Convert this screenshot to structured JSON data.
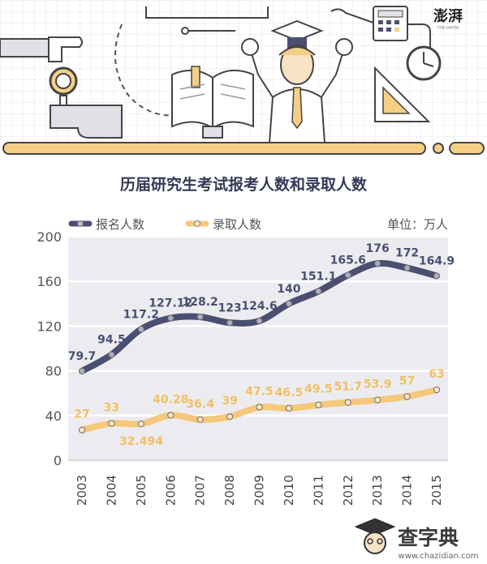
{
  "chart_data": {
    "type": "line",
    "title": "历届研究生考试报考人数和录取人数",
    "unit_label": "单位：万人",
    "x": [
      "2003",
      "2004",
      "2005",
      "2006",
      "2007",
      "2008",
      "2009",
      "2010",
      "2011",
      "2012",
      "2013",
      "2014",
      "2015"
    ],
    "ylim": [
      0,
      200
    ],
    "yticks": [
      "0",
      "40",
      "80",
      "120",
      "160",
      "200"
    ],
    "grid": true,
    "legend_position": "top-left",
    "series": [
      {
        "name": "报名人数",
        "color": "#4a4f72",
        "values": [
          79.7,
          94.5,
          117.2,
          127.12,
          128.2,
          123,
          124.6,
          140,
          151.1,
          165.6,
          176,
          172,
          164.9
        ],
        "labels": [
          "79.7",
          "94.5",
          "117.2",
          "127.12",
          "128.2",
          "123",
          "124.6",
          "140",
          "151.1",
          "165.6",
          "176",
          "172",
          "164.9"
        ]
      },
      {
        "name": "录取人数",
        "color": "#f5c87c",
        "values": [
          27,
          33,
          32.494,
          40.28,
          36.4,
          39,
          47.5,
          46.5,
          49.5,
          51.7,
          53.9,
          57,
          63
        ],
        "labels": [
          "27",
          "33",
          "32.494",
          "40.28",
          "36.4",
          "39",
          "47.5",
          "46.5",
          "49.5",
          "51.7",
          "53.9",
          "57",
          "63"
        ]
      }
    ]
  },
  "banner": {
    "logo_text": "澎湃",
    "logo_sub": "THE PAPER"
  },
  "watermark": {
    "text": "查字典",
    "url": "www.chazidian.com"
  },
  "colors": {
    "plot_bg": "#ececf0",
    "grid": "#ffffff",
    "accent_dark": "#4a4f72",
    "accent_light": "#f5c87c"
  }
}
